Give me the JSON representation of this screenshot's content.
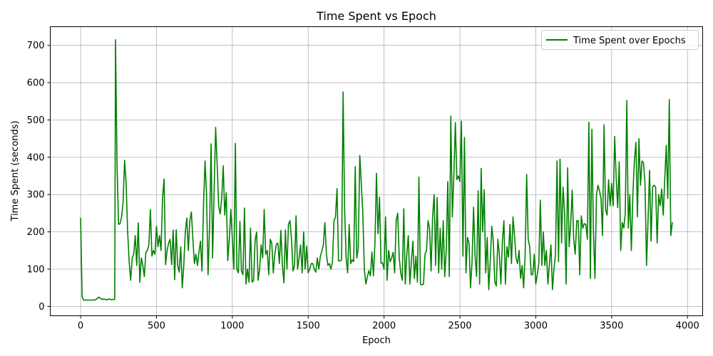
{
  "chart_data": {
    "type": "line",
    "title": "Time Spent vs Epoch",
    "xlabel": "Epoch",
    "ylabel": "Time Spent (seconds)",
    "xlim": [
      -200,
      4100
    ],
    "ylim": [
      -25,
      750
    ],
    "xticks": [
      0,
      500,
      1000,
      1500,
      2000,
      2500,
      3000,
      3500,
      4000
    ],
    "yticks": [
      0,
      100,
      200,
      300,
      400,
      500,
      600,
      700
    ],
    "grid": true,
    "legend_position": "top-right",
    "colors": {
      "line": "#008000",
      "grid": "#b0b0b0"
    },
    "series": [
      {
        "name": "Time Spent over Epochs",
        "x": [
          0,
          10,
          20,
          40,
          60,
          80,
          100,
          110,
          120,
          130,
          140,
          150,
          160,
          170,
          180,
          190,
          200,
          210,
          220,
          225,
          230,
          240,
          250,
          260,
          270,
          280,
          290,
          300,
          310,
          320,
          330,
          340,
          350,
          360,
          370,
          380,
          390,
          400,
          410,
          420,
          430,
          440,
          450,
          460,
          470,
          480,
          490,
          500,
          510,
          520,
          530,
          540,
          550,
          560,
          570,
          580,
          590,
          600,
          610,
          620,
          630,
          640,
          650,
          660,
          670,
          680,
          690,
          700,
          710,
          720,
          730,
          740,
          750,
          760,
          770,
          780,
          790,
          800,
          810,
          820,
          830,
          840,
          850,
          860,
          870,
          880,
          890,
          900,
          910,
          920,
          930,
          940,
          950,
          960,
          970,
          980,
          990,
          1000,
          1010,
          1020,
          1030,
          1040,
          1050,
          1060,
          1070,
          1080,
          1090,
          1100,
          1110,
          1120,
          1130,
          1140,
          1150,
          1160,
          1170,
          1180,
          1190,
          1200,
          1210,
          1220,
          1230,
          1240,
          1250,
          1260,
          1270,
          1280,
          1290,
          1300,
          1310,
          1320,
          1330,
          1340,
          1350,
          1360,
          1370,
          1380,
          1390,
          1400,
          1410,
          1420,
          1430,
          1440,
          1450,
          1460,
          1470,
          1480,
          1490,
          1500,
          1510,
          1520,
          1530,
          1540,
          1550,
          1560,
          1570,
          1580,
          1590,
          1600,
          1610,
          1620,
          1630,
          1640,
          1650,
          1660,
          1670,
          1680,
          1690,
          1700,
          1710,
          1720,
          1730,
          1740,
          1750,
          1760,
          1770,
          1780,
          1790,
          1800,
          1810,
          1820,
          1830,
          1840,
          1850,
          1860,
          1870,
          1880,
          1890,
          1900,
          1910,
          1920,
          1930,
          1940,
          1950,
          1960,
          1970,
          1980,
          1990,
          2000,
          2010,
          2020,
          2030,
          2040,
          2050,
          2060,
          2070,
          2080,
          2090,
          2100,
          2110,
          2120,
          2130,
          2140,
          2150,
          2160,
          2170,
          2180,
          2190,
          2200,
          2210,
          2220,
          2230,
          2240,
          2250,
          2260,
          2270,
          2280,
          2290,
          2300,
          2310,
          2320,
          2330,
          2340,
          2350,
          2360,
          2370,
          2380,
          2390,
          2400,
          2410,
          2420,
          2430,
          2440,
          2450,
          2460,
          2470,
          2480,
          2490,
          2500,
          2510,
          2520,
          2530,
          2540,
          2550,
          2560,
          2570,
          2580,
          2590,
          2600,
          2610,
          2620,
          2630,
          2640,
          2650,
          2660,
          2670,
          2680,
          2690,
          2700,
          2710,
          2720,
          2730,
          2740,
          2750,
          2760,
          2770,
          2780,
          2790,
          2800,
          2810,
          2820,
          2830,
          2840,
          2850,
          2860,
          2870,
          2880,
          2890,
          2900,
          2910,
          2920,
          2930,
          2940,
          2950,
          2960,
          2970,
          2980,
          2990,
          3000,
          3010,
          3020,
          3030,
          3040,
          3050,
          3060,
          3070,
          3080,
          3090,
          3100,
          3110,
          3120,
          3130,
          3140,
          3150,
          3160,
          3170,
          3180,
          3190,
          3200,
          3210,
          3220,
          3230,
          3240,
          3250,
          3260,
          3270,
          3280,
          3290,
          3300,
          3310,
          3320,
          3330,
          3340,
          3350,
          3360,
          3370,
          3380,
          3390,
          3400,
          3410,
          3420,
          3430,
          3440,
          3450,
          3460,
          3470,
          3480,
          3490,
          3500,
          3510,
          3520,
          3530,
          3540,
          3550,
          3560,
          3570,
          3580,
          3590,
          3600,
          3610,
          3620,
          3630,
          3640,
          3650,
          3660,
          3670,
          3680,
          3690,
          3700,
          3710,
          3720,
          3730,
          3740,
          3750,
          3760,
          3770,
          3780,
          3790,
          3800,
          3810,
          3820,
          3830,
          3840,
          3850,
          3860,
          3870,
          3880,
          3890,
          3900
        ],
        "y": [
          237,
          25,
          17,
          17,
          17,
          17,
          18,
          22,
          25,
          22,
          19,
          20,
          19,
          18,
          19,
          20,
          18,
          19,
          18,
          20,
          715,
          380,
          220,
          222,
          240,
          280,
          392,
          330,
          200,
          120,
          70,
          130,
          140,
          190,
          110,
          224,
          65,
          130,
          110,
          80,
          145,
          150,
          165,
          260,
          135,
          150,
          140,
          215,
          160,
          190,
          150,
          290,
          342,
          112,
          150,
          170,
          180,
          112,
          205,
          72,
          206,
          110,
          92,
          160,
          50,
          110,
          200,
          237,
          150,
          230,
          253,
          180,
          115,
          140,
          110,
          145,
          175,
          95,
          270,
          390,
          300,
          85,
          210,
          436,
          130,
          310,
          480,
          380,
          270,
          248,
          290,
          377,
          245,
          305,
          123,
          180,
          260,
          180,
          100,
          437,
          100,
          90,
          228,
          95,
          85,
          264,
          60,
          100,
          65,
          210,
          65,
          70,
          177,
          200,
          70,
          100,
          165,
          130,
          260,
          140,
          150,
          85,
          180,
          170,
          90,
          140,
          167,
          170,
          115,
          204,
          110,
          63,
          205,
          100,
          220,
          230,
          180,
          95,
          110,
          243,
          100,
          130,
          165,
          90,
          200,
          100,
          162,
          90,
          100,
          115,
          115,
          100,
          92,
          130,
          100,
          135,
          148,
          165,
          225,
          140,
          110,
          115,
          100,
          120,
          230,
          240,
          316,
          122,
          122,
          125,
          575,
          265,
          130,
          90,
          220,
          115,
          125,
          120,
          375,
          130,
          155,
          405,
          330,
          250,
          100,
          60,
          80,
          96,
          82,
          146,
          82,
          170,
          357,
          195,
          293,
          116,
          117,
          100,
          240,
          70,
          150,
          120,
          130,
          145,
          90,
          230,
          250,
          130,
          90,
          70,
          262,
          60,
          140,
          190,
          60,
          120,
          175,
          75,
          135,
          65,
          347,
          60,
          58,
          60,
          140,
          150,
          230,
          210,
          95,
          240,
          300,
          110,
          292,
          90,
          210,
          100,
          230,
          80,
          150,
          335,
          80,
          510,
          240,
          350,
          493,
          340,
          350,
          335,
          497,
          135,
          453,
          90,
          185,
          170,
          50,
          120,
          266,
          135,
          80,
          310,
          60,
          370,
          200,
          313,
          90,
          185,
          45,
          120,
          215,
          175,
          65,
          55,
          180,
          140,
          60,
          175,
          230,
          60,
          160,
          132,
          220,
          115,
          240,
          190,
          130,
          115,
          150,
          75,
          110,
          50,
          140,
          354,
          180,
          160,
          85,
          85,
          140,
          60,
          85,
          115,
          285,
          110,
          200,
          110,
          150,
          60,
          115,
          165,
          45,
          100,
          140,
          390,
          120,
          395,
          170,
          320,
          250,
          60,
          372,
          160,
          220,
          312,
          180,
          140,
          230,
          230,
          85,
          243,
          210,
          222,
          220,
          180,
          494,
          75,
          475,
          200,
          75,
          300,
          325,
          310,
          290,
          190,
          487,
          260,
          245,
          340,
          270,
          330,
          270,
          456,
          345,
          265,
          388,
          150,
          225,
          210,
          250,
          552,
          210,
          300,
          150,
          300,
          390,
          440,
          240,
          450,
          325,
          390,
          385,
          330,
          110,
          230,
          365,
          175,
          320,
          325,
          320,
          170,
          300,
          270,
          315,
          245,
          340,
          432,
          290,
          555,
          190,
          225
        ]
      }
    ]
  }
}
